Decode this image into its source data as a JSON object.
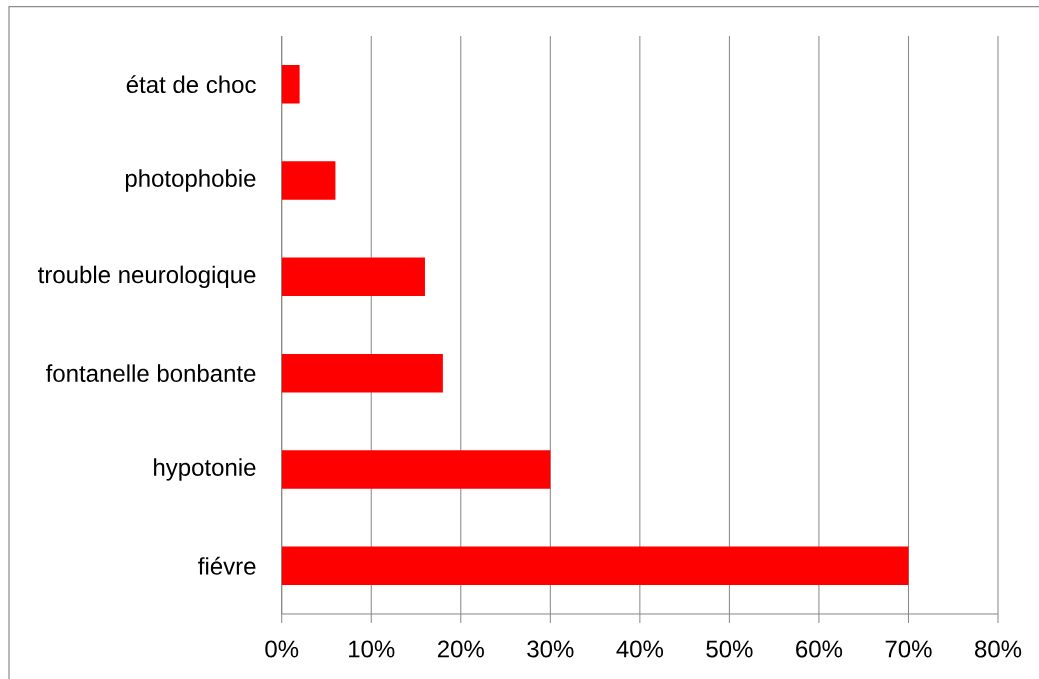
{
  "chart_data": {
    "type": "bar",
    "orientation": "horizontal",
    "categories": [
      "état de choc",
      "photophobie",
      "trouble neurologique",
      "fontanelle bonbante",
      "hypotonie",
      "fiévre"
    ],
    "values": [
      2,
      6,
      16,
      18,
      30,
      70
    ],
    "color": "#ff0000",
    "xlim": [
      0,
      80
    ],
    "xticks": [
      {
        "value": 0,
        "label": "0%"
      },
      {
        "value": 10,
        "label": "10%"
      },
      {
        "value": 20,
        "label": "20%"
      },
      {
        "value": 30,
        "label": "30%"
      },
      {
        "value": 40,
        "label": "40%"
      },
      {
        "value": 50,
        "label": "50%"
      },
      {
        "value": 60,
        "label": "60%"
      },
      {
        "value": 70,
        "label": "70%"
      },
      {
        "value": 80,
        "label": "80%"
      }
    ],
    "grid": "x"
  }
}
